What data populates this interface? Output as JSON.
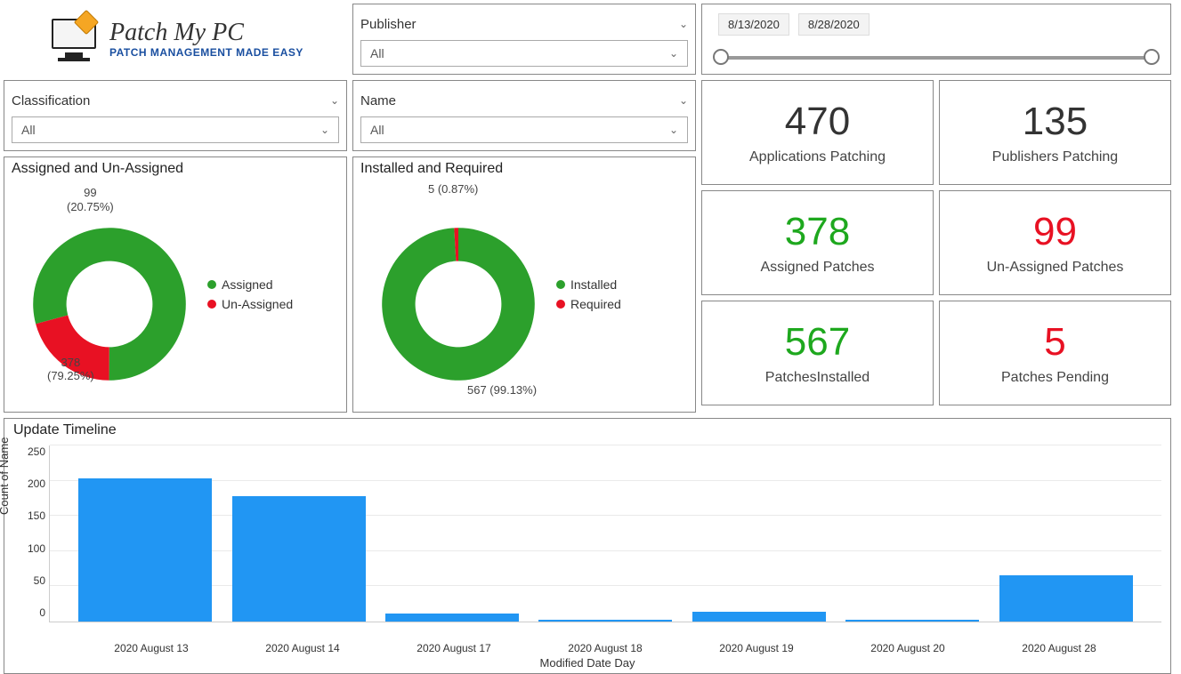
{
  "logo": {
    "title": "Patch My PC",
    "subtitle": "PATCH MANAGEMENT MADE EASY"
  },
  "filters": {
    "classification": {
      "label": "Classification",
      "value": "All"
    },
    "publisher": {
      "label": "Publisher",
      "value": "All"
    },
    "name": {
      "label": "Name",
      "value": "All"
    }
  },
  "date_range": {
    "start": "8/13/2020",
    "end": "8/28/2020"
  },
  "kpis": {
    "apps_patching": {
      "value": "470",
      "label": "Applications Patching",
      "color": "#222222"
    },
    "publishers_patching": {
      "value": "135",
      "label": "Publishers Patching",
      "color": "#222222"
    },
    "assigned_patches": {
      "value": "378",
      "label": "Assigned Patches",
      "color": "#1ea81e"
    },
    "unassigned_patches": {
      "value": "99",
      "label": "Un-Assigned Patches",
      "color": "#e81123"
    },
    "patches_installed": {
      "value": "567",
      "label": "PatchesInstalled",
      "color": "#1ea81e"
    },
    "patches_pending": {
      "value": "5",
      "label": "Patches Pending",
      "color": "#e81123"
    }
  },
  "donut_assigned": {
    "title": "Assigned and Un-Assigned",
    "series": [
      {
        "name": "Assigned",
        "value": 378,
        "pct": "79.25%",
        "color": "#2ca02c"
      },
      {
        "name": "Un-Assigned",
        "value": 99,
        "pct": "20.75%",
        "color": "#e81123"
      }
    ],
    "callout_top": "99\n(20.75%)",
    "callout_bottom": "378\n(79.25%)"
  },
  "donut_installed": {
    "title": "Installed and Required",
    "series": [
      {
        "name": "Installed",
        "value": 567,
        "pct": "99.13%",
        "color": "#2ca02c"
      },
      {
        "name": "Required",
        "value": 5,
        "pct": "0.87%",
        "color": "#e81123"
      }
    ],
    "callout_top": "5 (0.87%)",
    "callout_bottom": "567 (99.13%)"
  },
  "timeline": {
    "title": "Update Timeline",
    "ylabel": "Count of Name",
    "xlabel": "Modified Date Day",
    "ymax": 250,
    "ytick_step": 50,
    "bar_color": "#2196f3",
    "grid_color": "#eaeaea",
    "categories": [
      "2020 August 13",
      "2020 August 14",
      "2020 August 17",
      "2020 August 18",
      "2020 August 19",
      "2020 August 20",
      "2020 August 28"
    ],
    "values": [
      203,
      178,
      11,
      3,
      14,
      2,
      66
    ]
  }
}
